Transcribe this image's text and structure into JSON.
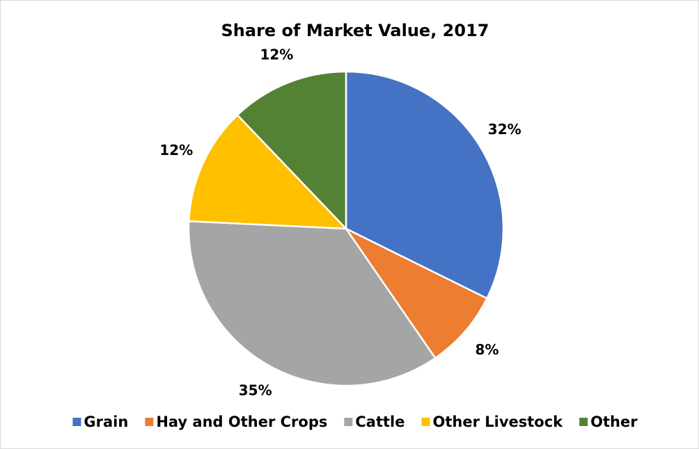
{
  "chart_data": {
    "type": "pie",
    "title": "Share of Market Value, 2017",
    "categories": [
      "Grain",
      "Hay and Other Crops",
      "Cattle",
      "Other Livestock",
      "Other"
    ],
    "values": [
      32,
      8,
      35,
      12,
      12
    ],
    "value_labels": [
      "32%",
      "8%",
      "35%",
      "12%",
      "12%"
    ],
    "colors": [
      "#4472c4",
      "#ed7d31",
      "#a5a5a5",
      "#ffc000",
      "#548235"
    ],
    "legend": "bottom"
  }
}
